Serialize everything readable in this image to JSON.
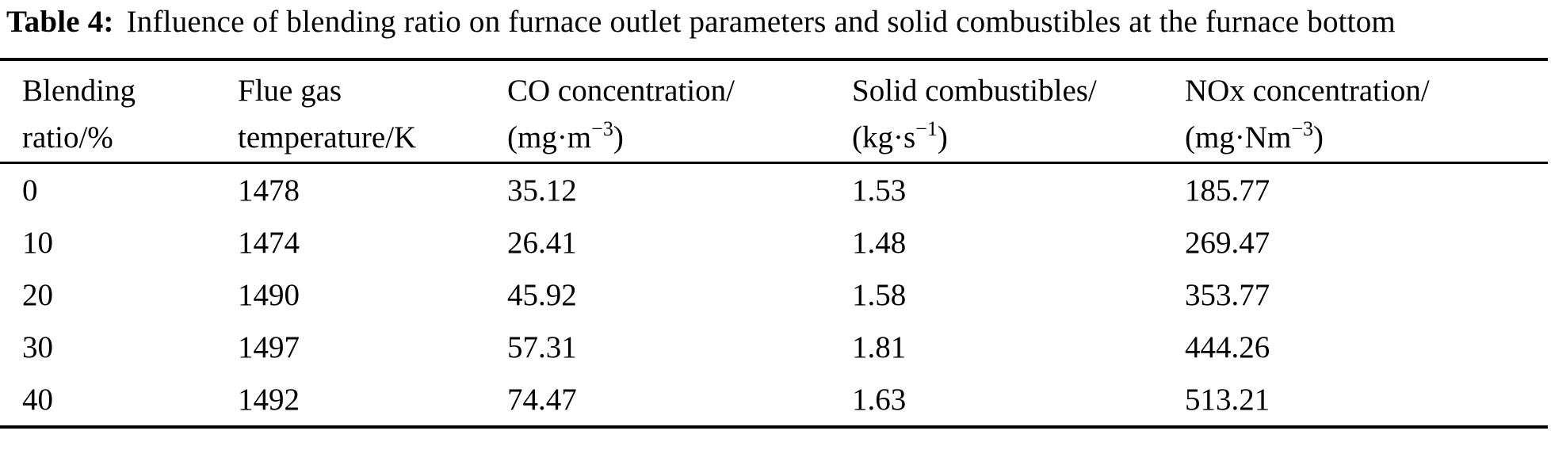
{
  "caption": {
    "label": "Table 4:",
    "text": "Influence of blending ratio on furnace outlet parameters and solid combustibles at the furnace bottom"
  },
  "table": {
    "columns": [
      {
        "line1": "Blending",
        "line2_pre": "ratio/%",
        "line2_sup": "",
        "line2_post": ""
      },
      {
        "line1": "Flue gas",
        "line2_pre": "temperature/K",
        "line2_sup": "",
        "line2_post": ""
      },
      {
        "line1": "CO concentration/",
        "line2_pre": "(mg·m",
        "line2_sup": "−3",
        "line2_post": ")"
      },
      {
        "line1": "Solid combustibles/",
        "line2_pre": "(kg·s",
        "line2_sup": "−1",
        "line2_post": ")"
      },
      {
        "line1": "NOx concentration/",
        "line2_pre": "(mg·Nm",
        "line2_sup": "−3",
        "line2_post": ")"
      }
    ],
    "rows": [
      [
        "0",
        "1478",
        "35.12",
        "1.53",
        "185.77"
      ],
      [
        "10",
        "1474",
        "26.41",
        "1.48",
        "269.47"
      ],
      [
        "20",
        "1490",
        "45.92",
        "1.58",
        "353.77"
      ],
      [
        "30",
        "1497",
        "57.31",
        "1.81",
        "444.26"
      ],
      [
        "40",
        "1492",
        "74.47",
        "1.63",
        "513.21"
      ]
    ]
  },
  "colors": {
    "text": "#000000",
    "background": "#ffffff",
    "rule": "#000000"
  },
  "chart_data": {
    "type": "table",
    "title": "Table 4: Influence of blending ratio on furnace outlet parameters and solid combustibles at the furnace bottom",
    "columns": [
      "Blending ratio/%",
      "Flue gas temperature/K",
      "CO concentration/(mg·m−3)",
      "Solid combustibles/(kg·s−1)",
      "NOx concentration/(mg·Nm−3)"
    ],
    "categories": [
      0,
      10,
      20,
      30,
      40
    ],
    "series": [
      {
        "name": "Flue gas temperature/K",
        "values": [
          1478,
          1474,
          1490,
          1497,
          1492
        ]
      },
      {
        "name": "CO concentration/(mg·m−3)",
        "values": [
          35.12,
          26.41,
          45.92,
          57.31,
          74.47
        ]
      },
      {
        "name": "Solid combustibles/(kg·s−1)",
        "values": [
          1.53,
          1.48,
          1.58,
          1.81,
          1.63
        ]
      },
      {
        "name": "NOx concentration/(mg·Nm−3)",
        "values": [
          185.77,
          269.47,
          353.77,
          444.26,
          513.21
        ]
      }
    ]
  }
}
